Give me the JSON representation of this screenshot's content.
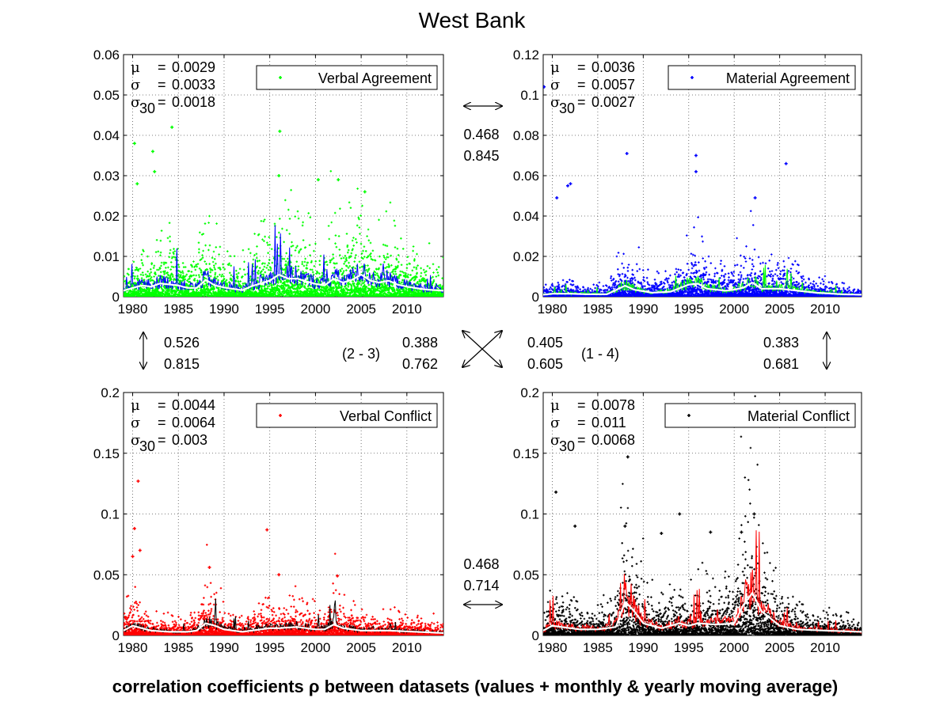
{
  "figure": {
    "title": "West Bank",
    "caption": "correlation coefficients ρ between datasets (values + monthly & yearly moving average)"
  },
  "chart_data": [
    {
      "type": "scatter",
      "title": "",
      "legend": "Verbal Agreement",
      "legend_position": "top-right",
      "point_color": "#00ff00",
      "monthly_avg_color": "#0000ff",
      "yearly_avg_color": "#ffffff",
      "grid": true,
      "xlim": [
        1979,
        2014
      ],
      "ylim": [
        0,
        0.06
      ],
      "xticks": [
        "1980",
        "1985",
        "1990",
        "1995",
        "2000",
        "2005",
        "2010"
      ],
      "yticks": [
        "0",
        "0.01",
        "0.02",
        "0.03",
        "0.04",
        "0.05",
        "0.06"
      ],
      "stats": {
        "mu": "0.0029",
        "sigma": "0.0033",
        "sigma30": "0.0018"
      },
      "peaks": [
        [
          1980.2,
          0.038
        ],
        [
          1980.5,
          0.028
        ],
        [
          1982.2,
          0.036
        ],
        [
          1982.4,
          0.031
        ],
        [
          1984.3,
          0.042
        ],
        [
          1996.1,
          0.041
        ],
        [
          1996.0,
          0.03
        ],
        [
          2005.4,
          0.026
        ],
        [
          2002.5,
          0.029
        ],
        [
          2000.3,
          0.029
        ]
      ],
      "yearly_avg": [
        [
          1979,
          0.0015
        ],
        [
          1980,
          0.0022
        ],
        [
          1981,
          0.0028
        ],
        [
          1982,
          0.0025
        ],
        [
          1983,
          0.0033
        ],
        [
          1985,
          0.0028
        ],
        [
          1986,
          0.0022
        ],
        [
          1987,
          0.0022
        ],
        [
          1988,
          0.0042
        ],
        [
          1989,
          0.0028
        ],
        [
          1990,
          0.0023
        ],
        [
          1992,
          0.0016
        ],
        [
          1993,
          0.0026
        ],
        [
          1995,
          0.004
        ],
        [
          1996,
          0.0055
        ],
        [
          1997,
          0.0045
        ],
        [
          1998,
          0.0045
        ],
        [
          1999,
          0.0038
        ],
        [
          2000,
          0.0032
        ],
        [
          2001,
          0.0028
        ],
        [
          2002,
          0.0045
        ],
        [
          2003,
          0.0035
        ],
        [
          2004,
          0.0042
        ],
        [
          2005,
          0.0055
        ],
        [
          2006,
          0.004
        ],
        [
          2007,
          0.0035
        ],
        [
          2008,
          0.004
        ],
        [
          2009,
          0.003
        ],
        [
          2010,
          0.0025
        ],
        [
          2012,
          0.0018
        ],
        [
          2014,
          0.0015
        ]
      ]
    },
    {
      "type": "scatter",
      "title": "",
      "legend": "Material Agreement",
      "legend_position": "top-right",
      "point_color": "#0000ff",
      "monthly_avg_color": "#00ff00",
      "yearly_avg_color": "#ffffff",
      "grid": true,
      "xlim": [
        1979,
        2014
      ],
      "ylim": [
        0,
        0.12
      ],
      "xticks": [
        "1980",
        "1985",
        "1990",
        "1995",
        "2000",
        "2005",
        "2010"
      ],
      "yticks": [
        "0",
        "0.02",
        "0.04",
        "0.06",
        "0.08",
        "0.1",
        "0.12"
      ],
      "stats": {
        "mu": "0.0036",
        "sigma": "0.0057",
        "sigma30": "0.0027"
      },
      "peaks": [
        [
          1979.1,
          0.104
        ],
        [
          1988.2,
          0.071
        ],
        [
          1995.8,
          0.07
        ],
        [
          1995.8,
          0.062
        ],
        [
          2005.7,
          0.066
        ],
        [
          2002.3,
          0.049
        ],
        [
          1980.5,
          0.049
        ],
        [
          1981.7,
          0.055
        ],
        [
          1982.0,
          0.056
        ]
      ],
      "yearly_avg": [
        [
          1979,
          0.001
        ],
        [
          1980,
          0.0015
        ],
        [
          1982,
          0.0015
        ],
        [
          1984,
          0.0012
        ],
        [
          1986,
          0.0012
        ],
        [
          1988,
          0.0055
        ],
        [
          1989,
          0.0035
        ],
        [
          1991,
          0.002
        ],
        [
          1993,
          0.0025
        ],
        [
          1995,
          0.006
        ],
        [
          1996,
          0.0065
        ],
        [
          1997,
          0.004
        ],
        [
          1999,
          0.003
        ],
        [
          2000,
          0.0035
        ],
        [
          2001,
          0.0045
        ],
        [
          2002,
          0.007
        ],
        [
          2003,
          0.004
        ],
        [
          2005,
          0.004
        ],
        [
          2007,
          0.003
        ],
        [
          2009,
          0.002
        ],
        [
          2012,
          0.0012
        ],
        [
          2014,
          0.001
        ]
      ]
    },
    {
      "type": "scatter",
      "title": "",
      "legend": "Verbal Conflict",
      "legend_position": "top-right",
      "point_color": "#ff0000",
      "monthly_avg_color": "#000000",
      "yearly_avg_color": "#ffffff",
      "grid": true,
      "xlim": [
        1979,
        2014
      ],
      "ylim": [
        0,
        0.2
      ],
      "xticks": [
        "1980",
        "1985",
        "1990",
        "1995",
        "2000",
        "2005",
        "2010"
      ],
      "yticks": [
        "0",
        "0.05",
        "0.1",
        "0.15",
        "0.2"
      ],
      "stats": {
        "mu": "0.0044",
        "sigma": "0.0064",
        "sigma30": "0.003"
      },
      "peaks": [
        [
          1980.6,
          0.127
        ],
        [
          1980.2,
          0.088
        ],
        [
          1980.0,
          0.065
        ],
        [
          1980.8,
          0.07
        ],
        [
          1994.7,
          0.087
        ],
        [
          1996.0,
          0.05
        ],
        [
          2002.4,
          0.049
        ],
        [
          1988.4,
          0.056
        ]
      ],
      "yearly_avg": [
        [
          1979,
          0.004
        ],
        [
          1980,
          0.008
        ],
        [
          1981,
          0.006
        ],
        [
          1982,
          0.004
        ],
        [
          1984,
          0.003
        ],
        [
          1986,
          0.003
        ],
        [
          1987,
          0.004
        ],
        [
          1988,
          0.01
        ],
        [
          1989,
          0.008
        ],
        [
          1990,
          0.005
        ],
        [
          1992,
          0.003
        ],
        [
          1994,
          0.005
        ],
        [
          1995,
          0.006
        ],
        [
          1996,
          0.006
        ],
        [
          1998,
          0.007
        ],
        [
          2000,
          0.005
        ],
        [
          2001,
          0.005
        ],
        [
          2002,
          0.009
        ],
        [
          2003,
          0.006
        ],
        [
          2005,
          0.004
        ],
        [
          2008,
          0.004
        ],
        [
          2011,
          0.003
        ],
        [
          2014,
          0.002
        ]
      ]
    },
    {
      "type": "scatter",
      "title": "",
      "legend": "Material Conflict",
      "legend_position": "top-right",
      "point_color": "#000000",
      "monthly_avg_color": "#ff0000",
      "yearly_avg_color": "#ffffff",
      "grid": true,
      "xlim": [
        1979,
        2014
      ],
      "ylim": [
        0,
        0.2
      ],
      "xticks": [
        "1980",
        "1985",
        "1990",
        "1995",
        "2000",
        "2005",
        "2010"
      ],
      "yticks": [
        "0",
        "0.05",
        "0.1",
        "0.15",
        "0.2"
      ],
      "stats": {
        "mu": "0.0078",
        "sigma": "0.011",
        "sigma30": "0.0068"
      },
      "peaks": [
        [
          1988.3,
          0.147
        ],
        [
          1980.4,
          0.118
        ],
        [
          2002.2,
          0.1
        ],
        [
          1994.0,
          0.1
        ],
        [
          1982.5,
          0.09
        ],
        [
          1988.0,
          0.09
        ],
        [
          1997.4,
          0.085
        ],
        [
          2000.8,
          0.085
        ],
        [
          1992.0,
          0.084
        ]
      ],
      "yearly_avg": [
        [
          1979,
          0.004
        ],
        [
          1980,
          0.008
        ],
        [
          1981,
          0.007
        ],
        [
          1983,
          0.005
        ],
        [
          1985,
          0.005
        ],
        [
          1987,
          0.007
        ],
        [
          1988,
          0.028
        ],
        [
          1989,
          0.02
        ],
        [
          1990,
          0.01
        ],
        [
          1992,
          0.006
        ],
        [
          1994,
          0.01
        ],
        [
          1995,
          0.008
        ],
        [
          1996,
          0.01
        ],
        [
          1998,
          0.009
        ],
        [
          2000,
          0.01
        ],
        [
          2001,
          0.025
        ],
        [
          2002,
          0.035
        ],
        [
          2003,
          0.02
        ],
        [
          2005,
          0.008
        ],
        [
          2007,
          0.005
        ],
        [
          2010,
          0.004
        ],
        [
          2014,
          0.003
        ]
      ]
    }
  ],
  "correlations": {
    "top": {
      "values": [
        "0.468",
        "0.845"
      ]
    },
    "bottom": {
      "values": [
        "0.468",
        "0.714"
      ]
    },
    "left": {
      "values": [
        "0.526",
        "0.815"
      ]
    },
    "right": {
      "values": [
        "0.383",
        "0.681"
      ]
    },
    "diag_23": {
      "label": "(2 - 3)",
      "values": [
        "0.388",
        "0.762"
      ]
    },
    "diag_14": {
      "label": "(1 - 4)",
      "values": [
        "0.405",
        "0.605"
      ]
    }
  }
}
